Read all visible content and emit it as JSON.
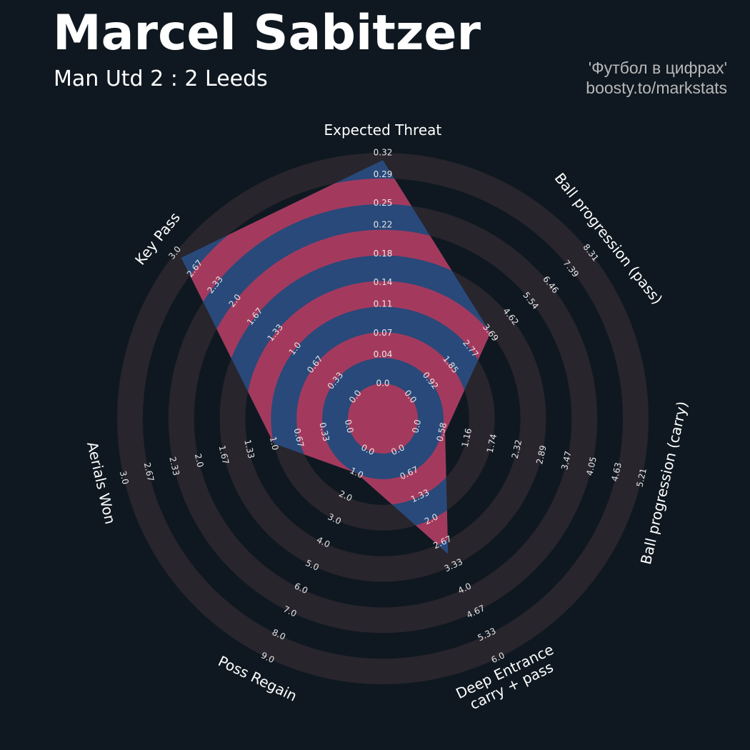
{
  "chart_data": {
    "type": "radar",
    "title": "Marcel Sabitzer",
    "subtitle": "Man Utd 2 : 2 Leeds",
    "credits": [
      "'Футбол в цифрах'",
      "boosty.to/markstats"
    ],
    "categories": [
      "Expected Threat",
      "Ball progression (pass)",
      "Ball progression (carry)",
      "Deep Entrance\ncarry + pass",
      "Poss Regain",
      "Aerials Won",
      "Key Pass"
    ],
    "values": [
      0.31,
      3.7,
      0.65,
      3.0,
      1.0,
      1.0,
      2.9
    ],
    "lims": [
      [
        0,
        0.32
      ],
      [
        0,
        8.31
      ],
      [
        0,
        5.21
      ],
      [
        0,
        6
      ],
      [
        0,
        9
      ],
      [
        0,
        3
      ],
      [
        0,
        3
      ]
    ],
    "ticks": [
      [
        {
          "value": 0,
          "label": "0.0"
        },
        0.04,
        0.07,
        0.11,
        0.14,
        0.18,
        0.22,
        0.25,
        0.29,
        0.32
      ],
      [
        {
          "value": 0,
          "label": "0.0"
        },
        0.92,
        1.85,
        2.77,
        3.69,
        4.62,
        5.54,
        6.46,
        7.39,
        8.31
      ],
      [
        {
          "value": 0,
          "label": "0.0"
        },
        0.58,
        1.16,
        1.74,
        2.32,
        2.89,
        3.47,
        4.05,
        4.63,
        5.21
      ],
      [
        {
          "value": 0,
          "label": "0.0"
        },
        0.67,
        1.33,
        {
          "value": 2,
          "label": "2.0"
        },
        2.67,
        3.33,
        {
          "value": 4,
          "label": "4.0"
        },
        4.67,
        5.33,
        {
          "value": 6,
          "label": "6.0"
        }
      ],
      [
        {
          "value": 0,
          "label": "0.0"
        },
        {
          "value": 1,
          "label": "1.0"
        },
        {
          "value": 2,
          "label": "2.0"
        },
        {
          "value": 3,
          "label": "3.0"
        },
        {
          "value": 4,
          "label": "4.0"
        },
        {
          "value": 5,
          "label": "5.0"
        },
        {
          "value": 6,
          "label": "6.0"
        },
        {
          "value": 7,
          "label": "7.0"
        },
        {
          "value": 8,
          "label": "8.0"
        },
        {
          "value": 9,
          "label": "9.0"
        }
      ],
      [
        {
          "value": 0,
          "label": "0.0"
        },
        0.33,
        0.67,
        {
          "value": 1,
          "label": "1.0"
        },
        1.33,
        1.67,
        {
          "value": 2,
          "label": "2.0"
        },
        2.33,
        2.67,
        {
          "value": 3,
          "label": "3.0"
        }
      ],
      [
        {
          "value": 0,
          "label": "0.0"
        },
        0.33,
        0.67,
        {
          "value": 1,
          "label": "1.0"
        },
        1.33,
        1.67,
        {
          "value": 2,
          "label": "2.0"
        },
        2.33,
        2.67,
        {
          "value": 3,
          "label": "3.0"
        }
      ]
    ],
    "ring_color": "#28252c",
    "color": "#28497a",
    "highlight_color": "#a33a5e"
  }
}
